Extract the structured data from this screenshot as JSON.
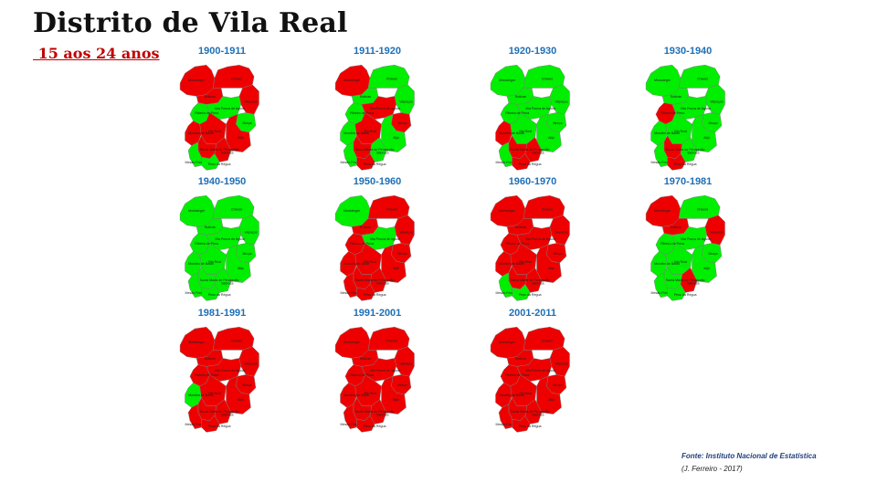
{
  "header": {
    "title": "Distrito de Vila Real",
    "subtitle": " 15 aos 24 anos"
  },
  "footer": {
    "source": "Fonte: Instituto Nacional de Estatística",
    "author": "(J. Ferreiro - 2017)"
  },
  "colors": {
    "increase": "#00ee00",
    "decrease": "#ee0000"
  },
  "municipality_labels": [
    "Montalegre",
    "Chaves",
    "Boticas",
    "Valpaços",
    "Vila Pouca de Aguiar",
    "Murça",
    "Alijó",
    "Vila Real",
    "Sabrosa",
    "Mondim de Basto",
    "Ribeira de Pena",
    "Santa Marta de Penaguião",
    "Peso da Régua",
    "Mesão Frio"
  ],
  "maps": [
    {
      "period": "1900-1911",
      "status": {
        "Montalegre": "red",
        "Chaves": "red",
        "Boticas": "red",
        "Valpacos": "red",
        "Ribeira de Pena": "green",
        "Vila Pouca de Aguiar": "green",
        "Murca": "green",
        "Mondim de Basto": "red",
        "Vila Real": "red",
        "Alijo": "red",
        "Sabrosa": "red",
        "Santa Marta de Penaguiao": "red",
        "Peso da Regua": "green",
        "Mesao Frio": "green"
      }
    },
    {
      "period": "1911-1920",
      "status": {
        "Montalegre": "red",
        "Chaves": "green",
        "Boticas": "green",
        "Valpacos": "green",
        "Ribeira de Pena": "green",
        "Vila Pouca de Aguiar": "red",
        "Murca": "red",
        "Mondim de Basto": "green",
        "Vila Real": "red",
        "Alijo": "green",
        "Sabrosa": "green",
        "Santa Marta de Penaguiao": "red",
        "Peso da Regua": "red",
        "Mesao Frio": "green"
      }
    },
    {
      "period": "1920-1930",
      "status": {
        "Montalegre": "green",
        "Chaves": "green",
        "Boticas": "green",
        "Valpacos": "green",
        "Ribeira de Pena": "green",
        "Vila Pouca de Aguiar": "green",
        "Murca": "green",
        "Mondim de Basto": "red",
        "Vila Real": "green",
        "Alijo": "green",
        "Sabrosa": "red",
        "Santa Marta de Penaguiao": "red",
        "Peso da Regua": "red",
        "Mesao Frio": "green"
      }
    },
    {
      "period": "1930-1940",
      "status": {
        "Montalegre": "green",
        "Chaves": "green",
        "Boticas": "green",
        "Valpacos": "green",
        "Ribeira de Pena": "red",
        "Vila Pouca de Aguiar": "green",
        "Murca": "green",
        "Mondim de Basto": "green",
        "Vila Real": "green",
        "Alijo": "green",
        "Sabrosa": "green",
        "Santa Marta de Penaguiao": "red",
        "Peso da Regua": "red",
        "Mesao Frio": "green"
      }
    },
    {
      "period": "1940-1950",
      "status": {
        "Montalegre": "green",
        "Chaves": "green",
        "Boticas": "green",
        "Valpacos": "green",
        "Ribeira de Pena": "green",
        "Vila Pouca de Aguiar": "green",
        "Murca": "green",
        "Mondim de Basto": "green",
        "Vila Real": "green",
        "Alijo": "green",
        "Sabrosa": "green",
        "Santa Marta de Penaguiao": "green",
        "Peso da Regua": "green",
        "Mesao Frio": "green"
      }
    },
    {
      "period": "1950-1960",
      "status": {
        "Montalegre": "green",
        "Chaves": "red",
        "Boticas": "red",
        "Valpacos": "red",
        "Ribeira de Pena": "red",
        "Vila Pouca de Aguiar": "green",
        "Murca": "red",
        "Mondim de Basto": "red",
        "Vila Real": "red",
        "Alijo": "red",
        "Sabrosa": "red",
        "Santa Marta de Penaguiao": "red",
        "Peso da Regua": "red",
        "Mesao Frio": "red"
      }
    },
    {
      "period": "1960-1970",
      "status": {
        "Montalegre": "red",
        "Chaves": "red",
        "Boticas": "red",
        "Valpacos": "red",
        "Ribeira de Pena": "red",
        "Vila Pouca de Aguiar": "red",
        "Murca": "red",
        "Mondim de Basto": "red",
        "Vila Real": "red",
        "Alijo": "red",
        "Sabrosa": "red",
        "Santa Marta de Penaguiao": "red",
        "Peso da Regua": "green",
        "Mesao Frio": "green"
      }
    },
    {
      "period": "1970-1981",
      "status": {
        "Montalegre": "red",
        "Chaves": "green",
        "Boticas": "red",
        "Valpacos": "red",
        "Ribeira de Pena": "green",
        "Vila Pouca de Aguiar": "green",
        "Murca": "green",
        "Mondim de Basto": "green",
        "Vila Real": "green",
        "Alijo": "green",
        "Sabrosa": "red",
        "Santa Marta de Penaguiao": "green",
        "Peso da Regua": "green",
        "Mesao Frio": "green"
      }
    },
    {
      "period": "1981-1991",
      "status": {
        "Montalegre": "red",
        "Chaves": "red",
        "Boticas": "red",
        "Valpacos": "red",
        "Ribeira de Pena": "red",
        "Vila Pouca de Aguiar": "red",
        "Murca": "red",
        "Mondim de Basto": "green",
        "Vila Real": "red",
        "Alijo": "red",
        "Sabrosa": "red",
        "Santa Marta de Penaguiao": "red",
        "Peso da Regua": "red",
        "Mesao Frio": "red"
      }
    },
    {
      "period": "1991-2001",
      "status": {
        "Montalegre": "red",
        "Chaves": "red",
        "Boticas": "red",
        "Valpacos": "red",
        "Ribeira de Pena": "red",
        "Vila Pouca de Aguiar": "red",
        "Murca": "red",
        "Mondim de Basto": "red",
        "Vila Real": "red",
        "Alijo": "red",
        "Sabrosa": "red",
        "Santa Marta de Penaguiao": "red",
        "Peso da Regua": "red",
        "Mesao Frio": "red"
      }
    },
    {
      "period": "2001-2011",
      "status": {
        "Montalegre": "red",
        "Chaves": "red",
        "Boticas": "red",
        "Valpacos": "red",
        "Ribeira de Pena": "red",
        "Vila Pouca de Aguiar": "red",
        "Murca": "red",
        "Mondim de Basto": "red",
        "Vila Real": "red",
        "Alijo": "red",
        "Sabrosa": "red",
        "Santa Marta de Penaguiao": "red",
        "Peso da Regua": "red",
        "Mesao Frio": "red"
      }
    }
  ]
}
